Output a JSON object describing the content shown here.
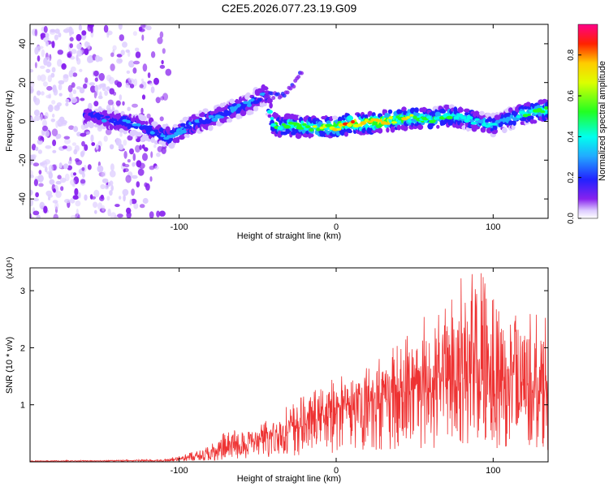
{
  "title": "C2E5.2026.077.23.19.G09",
  "chart_data": [
    {
      "type": "heatmap",
      "title": "C2E5.2026.077.23.19.G09",
      "xlabel": "Height of straight line (km)",
      "ylabel": "Frequency (Hz)",
      "xlim": [
        -195,
        135
      ],
      "ylim": [
        -50,
        50
      ],
      "xticks": [
        "-100",
        "0",
        "100"
      ],
      "xtick_values": [
        -100,
        0,
        100
      ],
      "yticks": [
        "-40",
        "-20",
        "0",
        "20",
        "40"
      ],
      "ytick_values": [
        -40,
        -20,
        0,
        20,
        40
      ],
      "colorbar": {
        "label": "Normalized spectral amplitude",
        "range": [
          0,
          0.95
        ],
        "ticks": [
          "0.0",
          "0.2",
          "0.4",
          "0.6",
          "0.8"
        ],
        "tick_values": [
          0.0,
          0.2,
          0.4,
          0.6,
          0.8
        ]
      },
      "ridge": {
        "x": [
          -155,
          -140,
          -125,
          -115,
          -105,
          -95,
          -85,
          -75,
          -65,
          -55,
          -50,
          -45,
          -40,
          -35,
          -30,
          -20,
          -10,
          0,
          10,
          20,
          30,
          40,
          50,
          60,
          70,
          80,
          90,
          100,
          110,
          120,
          130,
          135
        ],
        "y": [
          3,
          0,
          -2,
          -6,
          -8,
          -3,
          0,
          3,
          6,
          9,
          12,
          14,
          -1,
          -3,
          -2,
          -3,
          -3,
          -3,
          -1,
          -1,
          0,
          1,
          2,
          1,
          3,
          2,
          0,
          -2,
          1,
          4,
          5,
          6
        ],
        "peak_amplitude": [
          0.25,
          0.3,
          0.3,
          0.3,
          0.35,
          0.35,
          0.3,
          0.3,
          0.35,
          0.35,
          0.3,
          0.3,
          0.5,
          0.55,
          0.55,
          0.6,
          0.65,
          0.7,
          0.8,
          0.75,
          0.75,
          0.7,
          0.6,
          0.55,
          0.5,
          0.45,
          0.45,
          0.4,
          0.4,
          0.5,
          0.6,
          0.6
        ]
      },
      "branch": {
        "x": [
          -45,
          -38,
          -32,
          -25,
          -22
        ],
        "y": [
          14,
          13,
          15,
          21,
          26
        ]
      },
      "noise_region_x": [
        -195,
        -115
      ]
    },
    {
      "type": "line",
      "xlabel": "Height of straight line (km)",
      "ylabel": "SNR (10 * v/v)",
      "yscale_label": "(x10⁴)",
      "xlim": [
        -195,
        135
      ],
      "ylim": [
        0,
        3.4
      ],
      "xticks": [
        "-100",
        "0",
        "100"
      ],
      "xtick_values": [
        -100,
        0,
        100
      ],
      "yticks": [
        "1",
        "2",
        "3"
      ],
      "ytick_values": [
        1,
        2,
        3
      ],
      "series": [
        {
          "name": "SNR",
          "color": "#ee3333",
          "envelope_x": [
            -195,
            -150,
            -110,
            -100,
            -90,
            -80,
            -70,
            -60,
            -50,
            -40,
            -30,
            -20,
            -10,
            0,
            10,
            20,
            30,
            40,
            50,
            60,
            70,
            80,
            90,
            100,
            110,
            120,
            130,
            135
          ],
          "envelope_max": [
            0.02,
            0.03,
            0.05,
            0.12,
            0.2,
            0.3,
            0.55,
            0.6,
            0.65,
            0.8,
            1.0,
            1.2,
            1.3,
            1.5,
            1.6,
            1.75,
            1.95,
            2.1,
            2.5,
            2.6,
            2.9,
            3.3,
            3.4,
            3.3,
            3.2,
            2.7,
            2.7,
            2.6
          ],
          "envelope_mean": [
            0.01,
            0.015,
            0.02,
            0.05,
            0.08,
            0.12,
            0.2,
            0.25,
            0.3,
            0.4,
            0.5,
            0.6,
            0.7,
            0.8,
            0.9,
            1.0,
            1.0,
            1.1,
            1.2,
            1.2,
            1.3,
            1.4,
            1.3,
            1.2,
            1.2,
            1.1,
            1.1,
            1.0
          ]
        }
      ]
    }
  ]
}
